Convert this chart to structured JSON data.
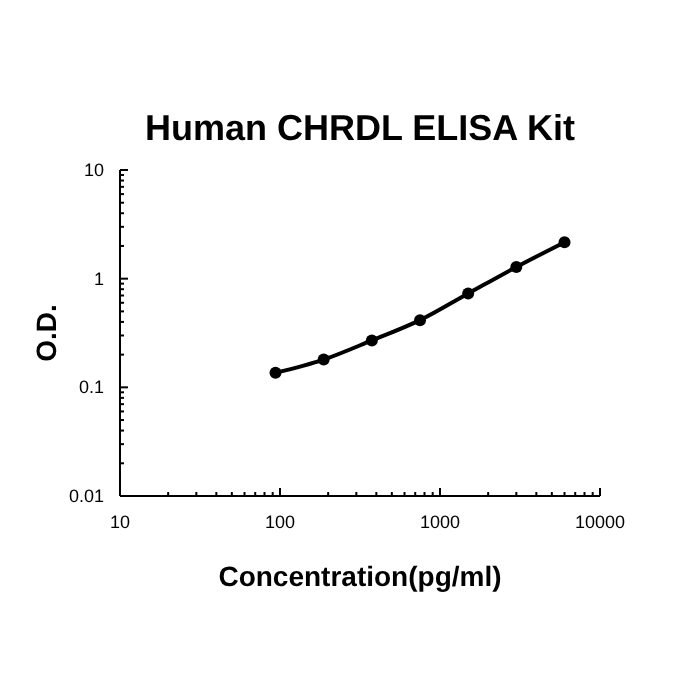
{
  "chart_data": {
    "type": "line",
    "title": "Human CHRDL ELISA Kit",
    "xlabel": "Concentration(pg/ml)",
    "ylabel": "O.D.",
    "log": "xy",
    "xlim": [
      10,
      10000
    ],
    "xticks": [
      10,
      100,
      1000,
      10000
    ],
    "ylim": [
      0.01,
      10
    ],
    "yticks": [
      0.01,
      0.1,
      1,
      10
    ],
    "grid": false,
    "marker": "circle",
    "line_style": "solid",
    "x": [
      93.75,
      187.5,
      375,
      750,
      1500,
      3000,
      6000
    ],
    "series": [
      {
        "color": "#000000",
        "values": [
          0.136,
          0.18,
          0.27,
          0.415,
          0.73,
          1.28,
          2.16
        ]
      }
    ]
  }
}
